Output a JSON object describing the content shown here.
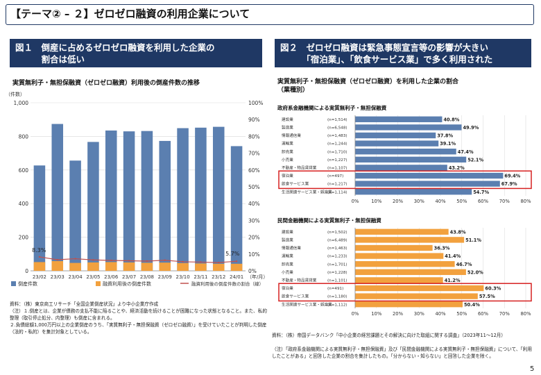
{
  "title": "【テーマ② – ２】ゼロゼロ融資の利用企業について",
  "fig1": {
    "header": "図１　倒産に占めるゼロゼロ融資を利用した企業の\n　　　割合は低い",
    "chart_title": "実質無利子・無担保融資（ゼロゼロ融資）利用後の倒産件数の推移",
    "source": "資料：（株）東京商工リサーチ「全国企業倒産状況」より中小企業庁作成",
    "note1": "（注）１.倒産とは、企業が債務の支払不能に陥ることや、経済活動を続けることが困難になった状態となること。また、私的整理（取引停止処分、内整理）も倒産に含まれる。",
    "note2": "２.負債総額1,000万円以上の企業倒産のうち、「実質無利子・無担保融資（ゼロゼロ融資）」を受けていたことが判明した倒産（法的・私的）を集計対象としている。"
  },
  "fig2": {
    "header": "図２　ゼロゼロ融資は緊急事態宣言等の影響が大きい\n　　　「宿泊業」、「飲食サービス業」で多く利用された",
    "chart_title": "実質無利子・無担保融資（ゼロゼロ融資）を利用した企業の割合\n（業種別）",
    "source": "資料：（株）帝国データバンク「中小企業の経営課題とその解決に向けた取組に関する調査」（2023年11～12月）",
    "note": "（注）「政府系金融機関による実質無利子・無担保融資」及び「民間金融機関による実質無利子・無担保融資」について、「利用したことがある」と回答した企業の割合を集計したもの。「分からない・知らない」と回答した企業を除く。"
  },
  "page_number": "5",
  "chart_data": [
    {
      "type": "bar",
      "categories": [
        "23/02",
        "23/03",
        "23/04",
        "23/05",
        "23/06",
        "23/07",
        "23/08",
        "23/09",
        "23/10",
        "23/11",
        "23/12",
        "24/01"
      ],
      "series": [
        {
          "name": "倒産件数",
          "values": [
            627,
            874,
            656,
            767,
            835,
            830,
            832,
            773,
            849,
            852,
            857,
            742
          ],
          "color": "#5b7fb0"
        },
        {
          "name": "融資利用後の倒産件数",
          "values": [
            52,
            58,
            47,
            50,
            52,
            50,
            48,
            49,
            46,
            44,
            42,
            42
          ],
          "color": "#f2a13e"
        },
        {
          "name": "融資利用後の倒産件数の割合（線）",
          "values": [
            8.3,
            6.6,
            7.2,
            6.5,
            6.2,
            6.0,
            5.8,
            6.3,
            5.4,
            5.2,
            4.9,
            5.7
          ],
          "axis": "right",
          "color": "#c0504d"
        }
      ],
      "ylabel": "（件数）",
      "xlabel": "（年/月）",
      "ylim": [
        0,
        1000
      ],
      "yticks": [
        "0",
        "200",
        "400",
        "600",
        "800",
        "1,000"
      ],
      "y2lim": [
        0,
        100
      ],
      "y2ticks": [
        "0%",
        "10%",
        "20%",
        "30%",
        "40%",
        "50%",
        "60%",
        "70%",
        "80%",
        "90%",
        "100%"
      ],
      "annotations": [
        "8.3%",
        "5.7%"
      ],
      "grid": true,
      "legend": "bottom"
    },
    {
      "type": "bar",
      "orientation": "horizontal",
      "title": "政府系金融機関による実質無利子・無担保融資",
      "categories": [
        "建設業",
        "製造業",
        "情報通信業",
        "運輸業",
        "卸売業",
        "小売業",
        "不動産・物品賃貸業",
        "宿泊業",
        "飲食サービス業",
        "生活関連サービス業・娯楽業"
      ],
      "n_labels": [
        "(n=1,514)",
        "(n=6,548)",
        "(n=1,483)",
        "(n=1,244)",
        "(n=1,710)",
        "(n=1,227)",
        "(n=1,107)",
        "(n=497)",
        "(n=1,217)",
        "(n=1,114)"
      ],
      "values": [
        40.8,
        49.9,
        37.8,
        39.1,
        47.4,
        52.1,
        43.2,
        69.4,
        67.9,
        54.7
      ],
      "value_labels": [
        "40.8%",
        "49.9%",
        "37.8%",
        "39.1%",
        "47.4%",
        "52.1%",
        "43.2%",
        "69.4%",
        "67.9%",
        "54.7%"
      ],
      "xlim": [
        0,
        80
      ],
      "xticks": [
        "0%",
        "10%",
        "20%",
        "30%",
        "40%",
        "50%",
        "60%",
        "70%",
        "80%"
      ],
      "color": "#5b7fb0",
      "highlighted": [
        "宿泊業",
        "飲食サービス業"
      ]
    },
    {
      "type": "bar",
      "orientation": "horizontal",
      "title": "民間金融機関による実質無利子・無担保融資",
      "categories": [
        "建設業",
        "製造業",
        "情報通信業",
        "運輸業",
        "卸売業",
        "小売業",
        "不動産・物品賃貸業",
        "宿泊業",
        "飲食サービス業",
        "生活関連サービス業・娯楽業"
      ],
      "n_labels": [
        "(n=1,502)",
        "(n=6,489)",
        "(n=1,463)",
        "(n=1,233)",
        "(n=1,701)",
        "(n=1,228)",
        "(n=1,101)",
        "(n=491)",
        "(n=1,180)",
        "(n=1,112)"
      ],
      "values": [
        43.8,
        51.1,
        36.3,
        41.4,
        46.7,
        52.0,
        41.2,
        60.3,
        57.5,
        50.4
      ],
      "value_labels": [
        "43.8%",
        "51.1%",
        "36.3%",
        "41.4%",
        "46.7%",
        "52.0%",
        "41.2%",
        "60.3%",
        "57.5%",
        "50.4%"
      ],
      "xlim": [
        0,
        80
      ],
      "xticks": [
        "0%",
        "10%",
        "20%",
        "30%",
        "40%",
        "50%",
        "60%",
        "70%",
        "80%"
      ],
      "color": "#f2a13e",
      "highlighted": [
        "宿泊業",
        "飲食サービス業"
      ]
    }
  ]
}
